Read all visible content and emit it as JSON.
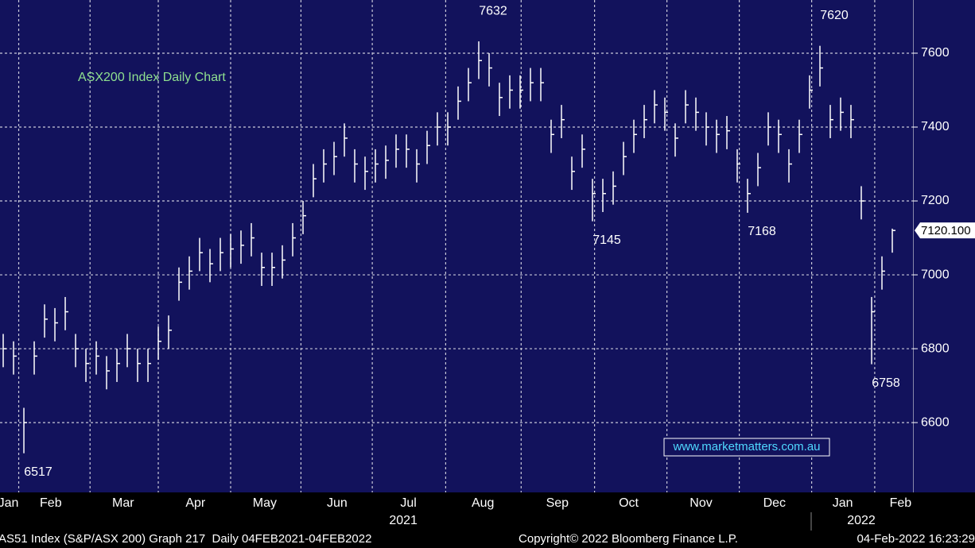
{
  "chart_data": {
    "type": "hlc",
    "title": "ASX200 Index Daily Chart",
    "watermark": "www.marketmatters.com.au",
    "footer_left": "AS51 Index (S&P/ASX 200) Graph 217  Daily 04FEB2021-04FEB2022",
    "footer_center": "Copyright© 2022 Bloomberg Finance L.P.",
    "footer_right": "04-Feb-2022 16:23:29",
    "color": "#ffffff",
    "grid": true,
    "high": [
      6840,
      6820,
      6640,
      6820,
      6920,
      6910,
      6940,
      6840,
      6800,
      6820,
      6780,
      6800,
      6840,
      6800,
      6800,
      6860,
      6890,
      7020,
      7050,
      7100,
      7070,
      7100,
      7110,
      7120,
      7140,
      7060,
      7060,
      7080,
      7140,
      7200,
      7300,
      7340,
      7360,
      7410,
      7340,
      7320,
      7340,
      7350,
      7380,
      7380,
      7340,
      7390,
      7440,
      7440,
      7510,
      7560,
      7632,
      7600,
      7520,
      7540,
      7540,
      7560,
      7560,
      7420,
      7460,
      7320,
      7380,
      7260,
      7260,
      7280,
      7360,
      7420,
      7460,
      7500,
      7480,
      7410,
      7500,
      7480,
      7440,
      7420,
      7430,
      7340,
      7260,
      7330,
      7440,
      7420,
      7340,
      7420,
      7540,
      7620,
      7460,
      7480,
      7460,
      7240,
      6940,
      7050,
      7125
    ],
    "low": [
      6750,
      6730,
      6517,
      6730,
      6830,
      6820,
      6850,
      6750,
      6710,
      6730,
      6690,
      6710,
      6750,
      6710,
      6710,
      6770,
      6800,
      6930,
      6960,
      7010,
      6980,
      7010,
      7020,
      7030,
      7050,
      6970,
      6970,
      6990,
      7050,
      7110,
      7210,
      7250,
      7270,
      7320,
      7250,
      7230,
      7250,
      7260,
      7290,
      7290,
      7250,
      7300,
      7350,
      7350,
      7420,
      7470,
      7530,
      7510,
      7430,
      7450,
      7450,
      7470,
      7470,
      7330,
      7370,
      7230,
      7290,
      7145,
      7170,
      7190,
      7270,
      7330,
      7370,
      7410,
      7390,
      7320,
      7410,
      7390,
      7350,
      7330,
      7340,
      7250,
      7168,
      7240,
      7350,
      7330,
      7250,
      7330,
      7450,
      7510,
      7370,
      7390,
      7370,
      7150,
      6758,
      6960,
      7060
    ],
    "close": [
      6800,
      6780,
      6600,
      6780,
      6880,
      6870,
      6900,
      6800,
      6760,
      6780,
      6740,
      6760,
      6800,
      6760,
      6760,
      6820,
      6850,
      6980,
      7010,
      7060,
      7030,
      7060,
      7070,
      7080,
      7100,
      7020,
      7020,
      7040,
      7100,
      7160,
      7260,
      7300,
      7320,
      7370,
      7300,
      7280,
      7300,
      7310,
      7340,
      7340,
      7300,
      7350,
      7400,
      7400,
      7470,
      7520,
      7580,
      7560,
      7480,
      7500,
      7500,
      7520,
      7520,
      7380,
      7420,
      7280,
      7340,
      7220,
      7220,
      7240,
      7320,
      7380,
      7420,
      7460,
      7440,
      7370,
      7460,
      7440,
      7400,
      7380,
      7390,
      7300,
      7220,
      7290,
      7400,
      7380,
      7300,
      7380,
      7500,
      7560,
      7420,
      7440,
      7420,
      7200,
      6900,
      7010,
      7120.1
    ],
    "annotations": [
      {
        "value": 6517,
        "index": 2
      },
      {
        "value": 7632,
        "index": 46
      },
      {
        "value": 7145,
        "index": 57
      },
      {
        "value": 7168,
        "index": 72
      },
      {
        "value": 7620,
        "index": 79
      },
      {
        "value": 6758,
        "index": 84
      }
    ],
    "last_price": {
      "value": 7120.1,
      "label": "7120.100"
    },
    "xlim": [
      -0.31,
      88
    ],
    "xticks": [
      {
        "value": 0.5,
        "label": "Jan"
      },
      {
        "value": 4.6,
        "label": "Feb"
      },
      {
        "value": 11.6,
        "label": "Mar"
      },
      {
        "value": 18.6,
        "label": "Apr"
      },
      {
        "value": 25.3,
        "label": "May"
      },
      {
        "value": 32.3,
        "label": "Jun"
      },
      {
        "value": 39.2,
        "label": "Jul"
      },
      {
        "value": 46.4,
        "label": "Aug"
      },
      {
        "value": 53.6,
        "label": "Sep"
      },
      {
        "value": 60.5,
        "label": "Oct"
      },
      {
        "value": 67.5,
        "label": "Nov"
      },
      {
        "value": 74.6,
        "label": "Dec"
      },
      {
        "value": 81.2,
        "label": "Jan"
      },
      {
        "value": 86.8,
        "label": "Feb"
      }
    ],
    "xgrid": [
      1.5,
      8.4,
      15,
      22,
      28.8,
      35.7,
      42.8,
      50.1,
      57.2,
      64.2,
      71.2,
      78.2,
      84.3
    ],
    "years": [
      {
        "value": 38.7,
        "label": "2021"
      },
      {
        "value": 83,
        "label": "2022"
      }
    ],
    "ylim": [
      6411,
      7744
    ],
    "yticks": [
      6600,
      6800,
      7000,
      7200,
      7400,
      7600
    ]
  }
}
